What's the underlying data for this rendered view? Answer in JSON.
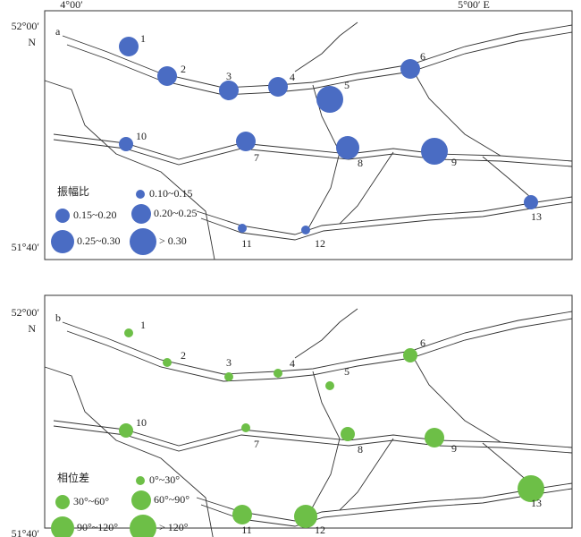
{
  "axes": {
    "x_labels": [
      "4°00′",
      "5°00′ E"
    ]
  },
  "panels": [
    {
      "label": "a",
      "color": "#4a6cc3",
      "lat_labels": [
        "52°00′",
        "N",
        "51°40′"
      ],
      "legend": {
        "title": "振幅比",
        "items": [
          "0.10~0.15",
          "0.15~0.20",
          "0.20~0.25",
          "0.25~0.30",
          "> 0.30"
        ]
      },
      "stations": [
        {
          "label": "1",
          "class": "0.20~0.25"
        },
        {
          "label": "2",
          "class": "0.20~0.25"
        },
        {
          "label": "3",
          "class": "0.20~0.25"
        },
        {
          "label": "4",
          "class": "0.20~0.25"
        },
        {
          "label": "5",
          "class": "> 0.30"
        },
        {
          "label": "6",
          "class": "0.20~0.25"
        },
        {
          "label": "7",
          "class": "0.20~0.25"
        },
        {
          "label": "8",
          "class": "0.25~0.30"
        },
        {
          "label": "9",
          "class": "> 0.30"
        },
        {
          "label": "10",
          "class": "0.15~0.20"
        },
        {
          "label": "11",
          "class": "0.10~0.15"
        },
        {
          "label": "12",
          "class": "0.10~0.15"
        },
        {
          "label": "13",
          "class": "0.15~0.20"
        }
      ]
    },
    {
      "label": "b",
      "color": "#6dbf47",
      "lat_labels": [
        "52°00′",
        "N",
        "51°40′"
      ],
      "legend": {
        "title": "相位差",
        "items": [
          "0°~30°",
          "30°~60°",
          "60°~90°",
          "90°~120°",
          "> 120°"
        ]
      },
      "stations": [
        {
          "label": "1",
          "class": "0°~30°"
        },
        {
          "label": "2",
          "class": "0°~30°"
        },
        {
          "label": "3",
          "class": "0°~30°"
        },
        {
          "label": "4",
          "class": "0°~30°"
        },
        {
          "label": "5",
          "class": "0°~30°"
        },
        {
          "label": "6",
          "class": "30°~60°"
        },
        {
          "label": "7",
          "class": "0°~30°"
        },
        {
          "label": "8",
          "class": "30°~60°"
        },
        {
          "label": "9",
          "class": "60°~90°"
        },
        {
          "label": "10",
          "class": "30°~60°"
        },
        {
          "label": "11",
          "class": "60°~90°"
        },
        {
          "label": "12",
          "class": "90°~120°"
        },
        {
          "label": "13",
          "class": "> 120°"
        }
      ]
    }
  ]
}
